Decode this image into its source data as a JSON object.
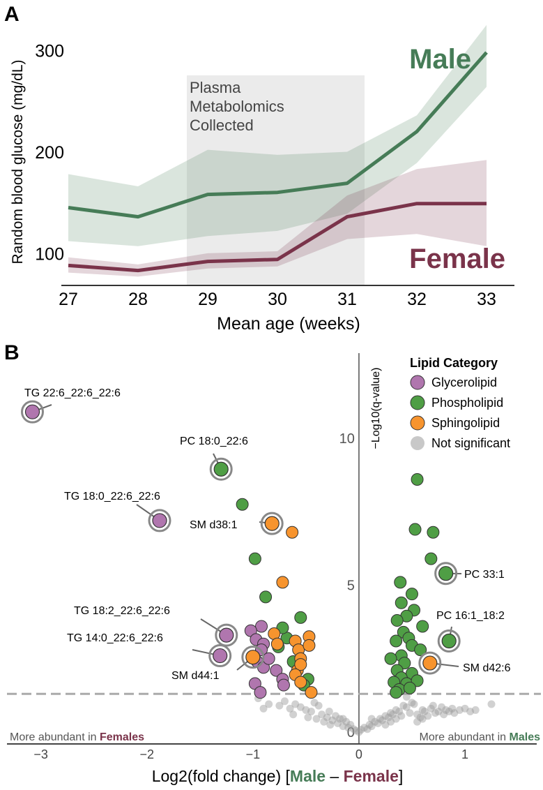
{
  "chart_data": [
    {
      "panel": "A",
      "type": "line",
      "ylabel": "Random blood glucose (mg/dL)",
      "xlabel": "Mean age (weeks)",
      "xlim": [
        26.9,
        33.4
      ],
      "ylim": [
        70,
        330
      ],
      "x_ticks": [
        27,
        28,
        29,
        30,
        31,
        32,
        33
      ],
      "y_ticks": [
        100,
        200,
        300
      ],
      "shaded_region": {
        "x0": 28.7,
        "x1": 31.25,
        "label_lines": [
          "Plasma",
          "Metabolomics",
          "Collected"
        ]
      },
      "series": [
        {
          "name": "Male",
          "color": "#467c57",
          "x": [
            27,
            28,
            29,
            30,
            31,
            32,
            33
          ],
          "y": [
            146,
            137,
            159,
            161,
            170,
            221,
            299
          ],
          "lower": [
            113,
            108,
            118,
            123,
            140,
            190,
            265
          ],
          "upper": [
            179,
            167,
            203,
            198,
            201,
            237,
            326
          ]
        },
        {
          "name": "Female",
          "color": "#7a334a",
          "x": [
            27,
            28,
            29,
            30,
            31,
            32,
            33
          ],
          "y": [
            89,
            84,
            93,
            95,
            137,
            150,
            150
          ],
          "lower": [
            82,
            78,
            86,
            88,
            115,
            120,
            108
          ],
          "upper": [
            97,
            90,
            101,
            103,
            158,
            184,
            193
          ]
        }
      ]
    },
    {
      "panel": "B",
      "type": "scatter",
      "xlabel_parts": [
        "Log2(fold change)  [",
        "Male",
        " – ",
        "Female",
        "]"
      ],
      "ylabel": "−Log10(q-value)",
      "xlim": [
        -3.32,
        1.48
      ],
      "ylim": [
        0,
        12.9
      ],
      "x_ticks": [
        -3,
        -2,
        -1,
        0,
        1
      ],
      "y_ticks": [
        0,
        5,
        10
      ],
      "threshold_y": 1.3,
      "legend": {
        "title": "Lipid Category",
        "placement": "top-right",
        "items": [
          {
            "label": "Glycerolipid",
            "color": "#b076ae"
          },
          {
            "label": "Phospholipid",
            "color": "#4f9e45"
          },
          {
            "label": "Sphingolipid",
            "color": "#f7942e"
          },
          {
            "label": "Not significant",
            "color": "#c8c8c8"
          }
        ]
      },
      "annotation_left_parts": [
        "More abundant in ",
        "Females"
      ],
      "annotation_right_parts": [
        "More abundant in ",
        "Males"
      ],
      "points": {
        "glycerolipid": [
          [
            -3.08,
            10.9
          ],
          [
            -1.88,
            7.2
          ],
          [
            -1.25,
            3.3
          ],
          [
            -1.31,
            2.6
          ],
          [
            -0.92,
            3.6
          ],
          [
            -1.02,
            3.45
          ],
          [
            -0.97,
            3.15
          ],
          [
            -0.9,
            3.0
          ],
          [
            -0.92,
            2.8
          ],
          [
            -0.96,
            2.4
          ],
          [
            -0.78,
            2.1
          ],
          [
            -0.72,
            1.8
          ],
          [
            -0.71,
            1.6
          ],
          [
            -0.98,
            1.65
          ],
          [
            -0.93,
            1.35
          ],
          [
            -0.9,
            2.2
          ],
          [
            -0.85,
            2.5
          ]
        ],
        "phospholipid": [
          [
            -1.3,
            8.95
          ],
          [
            -1.1,
            7.75
          ],
          [
            -0.98,
            5.9
          ],
          [
            -0.88,
            4.6
          ],
          [
            -0.55,
            3.9
          ],
          [
            -0.68,
            3.2
          ],
          [
            -0.72,
            3.55
          ],
          [
            -0.76,
            2.9
          ],
          [
            -0.62,
            2.4
          ],
          [
            -0.48,
            1.8
          ],
          [
            -0.52,
            1.6
          ],
          [
            0.55,
            8.6
          ],
          [
            0.53,
            6.9
          ],
          [
            0.7,
            6.8
          ],
          [
            0.68,
            5.9
          ],
          [
            0.39,
            5.1
          ],
          [
            0.5,
            4.7
          ],
          [
            0.4,
            4.4
          ],
          [
            0.52,
            4.15
          ],
          [
            0.45,
            3.95
          ],
          [
            0.36,
            3.8
          ],
          [
            0.6,
            3.6
          ],
          [
            0.42,
            3.4
          ],
          [
            0.47,
            3.2
          ],
          [
            0.35,
            3.1
          ],
          [
            0.5,
            2.95
          ],
          [
            0.58,
            2.8
          ],
          [
            0.4,
            2.6
          ],
          [
            0.3,
            2.5
          ],
          [
            0.43,
            2.35
          ],
          [
            0.36,
            2.1
          ],
          [
            0.5,
            2.0
          ],
          [
            0.4,
            1.85
          ],
          [
            0.33,
            1.7
          ],
          [
            0.45,
            1.65
          ],
          [
            0.55,
            1.75
          ],
          [
            0.38,
            1.45
          ],
          [
            0.48,
            1.5
          ],
          [
            0.35,
            1.35
          ],
          [
            0.85,
            3.1
          ],
          [
            0.82,
            5.4
          ]
        ],
        "sphingolipid": [
          [
            -0.82,
            7.1
          ],
          [
            -0.63,
            6.8
          ],
          [
            -0.72,
            5.1
          ],
          [
            -1.0,
            2.55
          ],
          [
            -0.6,
            3.1
          ],
          [
            -0.57,
            2.8
          ],
          [
            -0.55,
            2.5
          ],
          [
            -0.58,
            2.1
          ],
          [
            -0.47,
            3.25
          ],
          [
            -0.47,
            2.95
          ],
          [
            -0.55,
            2.3
          ],
          [
            -0.6,
            1.95
          ],
          [
            -0.55,
            1.7
          ],
          [
            -0.45,
            1.35
          ],
          [
            -0.8,
            3.35
          ],
          [
            -0.77,
            3.0
          ],
          [
            0.67,
            2.35
          ]
        ],
        "not_significant": [
          [
            -0.95,
            1.15
          ],
          [
            -0.7,
            1.05
          ],
          [
            -0.6,
            0.95
          ],
          [
            -0.55,
            0.85
          ],
          [
            -0.5,
            0.75
          ],
          [
            -0.45,
            0.7
          ],
          [
            -0.42,
            1.0
          ],
          [
            -0.38,
            0.9
          ],
          [
            -0.35,
            0.6
          ],
          [
            -0.3,
            0.5
          ],
          [
            -0.28,
            0.7
          ],
          [
            -0.25,
            0.4
          ],
          [
            -0.22,
            0.55
          ],
          [
            -0.2,
            0.3
          ],
          [
            -0.18,
            0.45
          ],
          [
            -0.15,
            0.2
          ],
          [
            -0.12,
            0.35
          ],
          [
            -0.1,
            0.15
          ],
          [
            -0.08,
            0.25
          ],
          [
            -0.05,
            0.1
          ],
          [
            -0.03,
            0.05
          ],
          [
            0.0,
            0.0
          ],
          [
            0.02,
            0.08
          ],
          [
            0.05,
            0.15
          ],
          [
            0.08,
            0.1
          ],
          [
            0.1,
            0.25
          ],
          [
            0.12,
            0.2
          ],
          [
            0.15,
            0.35
          ],
          [
            0.18,
            0.3
          ],
          [
            0.2,
            0.45
          ],
          [
            0.22,
            0.4
          ],
          [
            0.25,
            0.55
          ],
          [
            0.28,
            0.5
          ],
          [
            0.3,
            0.65
          ],
          [
            0.32,
            0.6
          ],
          [
            0.35,
            0.75
          ],
          [
            0.38,
            0.7
          ],
          [
            0.4,
            0.55
          ],
          [
            0.42,
            0.9
          ],
          [
            0.45,
            0.85
          ],
          [
            0.48,
            0.65
          ],
          [
            0.5,
            1.0
          ],
          [
            0.52,
            0.95
          ],
          [
            0.55,
            0.6
          ],
          [
            0.58,
            0.5
          ],
          [
            0.6,
            0.75
          ],
          [
            0.62,
            0.7
          ],
          [
            0.65,
            0.55
          ],
          [
            0.68,
            0.8
          ],
          [
            0.7,
            0.9
          ],
          [
            0.72,
            0.65
          ],
          [
            0.75,
            0.7
          ],
          [
            0.78,
            0.85
          ],
          [
            0.8,
            0.6
          ],
          [
            0.82,
            0.75
          ],
          [
            0.85,
            0.7
          ],
          [
            0.88,
            0.8
          ],
          [
            0.9,
            0.65
          ],
          [
            0.95,
            0.75
          ],
          [
            1.0,
            0.8
          ],
          [
            1.05,
            0.7
          ],
          [
            1.1,
            0.75
          ],
          [
            1.25,
            0.95
          ],
          [
            0.45,
            1.2
          ],
          [
            0.35,
            0.45
          ],
          [
            0.25,
            0.25
          ],
          [
            0.55,
            0.35
          ],
          [
            -0.65,
            0.8
          ],
          [
            -0.75,
            0.9
          ],
          [
            -0.85,
            0.95
          ],
          [
            -0.62,
            0.6
          ],
          [
            -0.48,
            0.5
          ],
          [
            -0.4,
            0.45
          ],
          [
            -0.33,
            0.35
          ],
          [
            -0.27,
            0.25
          ],
          [
            -0.9,
            0.8
          ],
          [
            0.6,
            0.45
          ],
          [
            0.3,
            0.35
          ],
          [
            -0.15,
            0.45
          ],
          [
            0.12,
            0.45
          ]
        ]
      },
      "labels": [
        {
          "text": "TG 22:6_22:6_22:6",
          "x": -3.08,
          "y": 10.9,
          "cat": "glycerolipid"
        },
        {
          "text": "PC 18:0_22:6",
          "x": -1.3,
          "y": 8.95,
          "cat": "phospholipid"
        },
        {
          "text": "TG 18:0_22:6_22:6",
          "x": -1.88,
          "y": 7.2,
          "cat": "glycerolipid"
        },
        {
          "text": "SM d38:1",
          "x": -0.82,
          "y": 7.1,
          "cat": "sphingolipid"
        },
        {
          "text": "TG 18:2_22:6_22:6",
          "x": -1.25,
          "y": 3.3,
          "cat": "glycerolipid"
        },
        {
          "text": "TG 14:0_22:6_22:6",
          "x": -1.31,
          "y": 2.6,
          "cat": "glycerolipid"
        },
        {
          "text": "SM d44:1",
          "x": -1.0,
          "y": 2.55,
          "cat": "sphingolipid"
        },
        {
          "text": "PC 33:1",
          "x": 0.82,
          "y": 5.4,
          "cat": "phospholipid"
        },
        {
          "text": "PC 16:1_18:2",
          "x": 0.85,
          "y": 3.1,
          "cat": "phospholipid"
        },
        {
          "text": "SM d42:6",
          "x": 0.67,
          "y": 2.35,
          "cat": "sphingolipid"
        }
      ]
    }
  ]
}
